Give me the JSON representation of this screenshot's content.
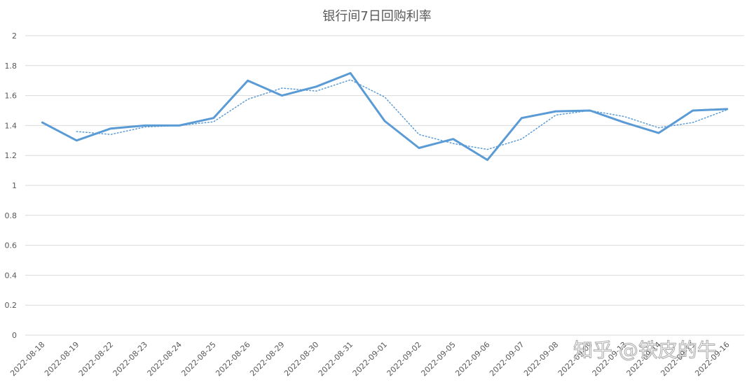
{
  "chart_data": {
    "type": "line",
    "title": "银行间7日回购利率",
    "xlabel": "",
    "ylabel": "",
    "ylim": [
      0,
      2
    ],
    "yticks": [
      "0",
      "0.2",
      "0.4",
      "0.6",
      "0.8",
      "1",
      "1.2",
      "1.4",
      "1.6",
      "1.8",
      "2"
    ],
    "grid": true,
    "legend": "none",
    "categories": [
      "2022-08-18",
      "2022-08-19",
      "2022-08-22",
      "2022-08-23",
      "2022-08-24",
      "2022-08-25",
      "2022-08-26",
      "2022-08-29",
      "2022-08-30",
      "2022-08-31",
      "2022-09-01",
      "2022-09-02",
      "2022-09-05",
      "2022-09-06",
      "2022-09-07",
      "2022-09-08",
      "2022-09-09",
      "2022-09-13",
      "2022-09-14",
      "2022-09-15",
      "2022-09-16"
    ],
    "series": [
      {
        "style": "solid",
        "color": "#5b9bd5",
        "values": [
          1.42,
          1.3,
          1.38,
          1.4,
          1.4,
          1.45,
          1.7,
          1.6,
          1.66,
          1.75,
          1.43,
          1.25,
          1.31,
          1.17,
          1.45,
          1.495,
          1.5,
          1.42,
          1.35,
          1.5,
          1.51
        ]
      },
      {
        "style": "dotted",
        "color": "#5b9bd5",
        "values": [
          null,
          1.36,
          1.34,
          1.39,
          1.4,
          1.425,
          1.575,
          1.65,
          1.63,
          1.705,
          1.59,
          1.34,
          1.28,
          1.24,
          1.31,
          1.47,
          1.5,
          1.46,
          1.385,
          1.42,
          1.505
        ]
      }
    ]
  },
  "watermark": "知乎 @铁皮的牛"
}
